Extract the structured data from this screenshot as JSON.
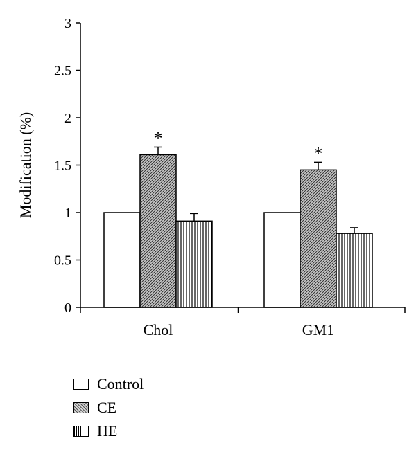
{
  "chart_data": {
    "type": "bar",
    "title": "",
    "xlabel": "",
    "ylabel": "Modification (%)",
    "ylim": [
      0,
      3
    ],
    "yticks": [
      "0",
      "0.5",
      "1",
      "1.5",
      "2",
      "2.5",
      "3"
    ],
    "grid": false,
    "categories": [
      "Chol",
      "GM1"
    ],
    "series": [
      {
        "name": "Control",
        "values": [
          1.0,
          1.0
        ],
        "errors": [
          0,
          0
        ],
        "significant": [
          false,
          false
        ],
        "pattern": "none",
        "color": "#ffffff"
      },
      {
        "name": "CE",
        "values": [
          1.61,
          1.45
        ],
        "errors": [
          0.08,
          0.08
        ],
        "significant": [
          true,
          true
        ],
        "pattern": "diagonal",
        "color": "#b0b0b0"
      },
      {
        "name": "HE",
        "values": [
          0.91,
          0.78
        ],
        "errors": [
          0.08,
          0.06
        ],
        "significant": [
          false,
          false
        ],
        "pattern": "vertical",
        "color": "#ffffff"
      }
    ],
    "significance_marker": "*",
    "legend_position": "bottom-left"
  }
}
